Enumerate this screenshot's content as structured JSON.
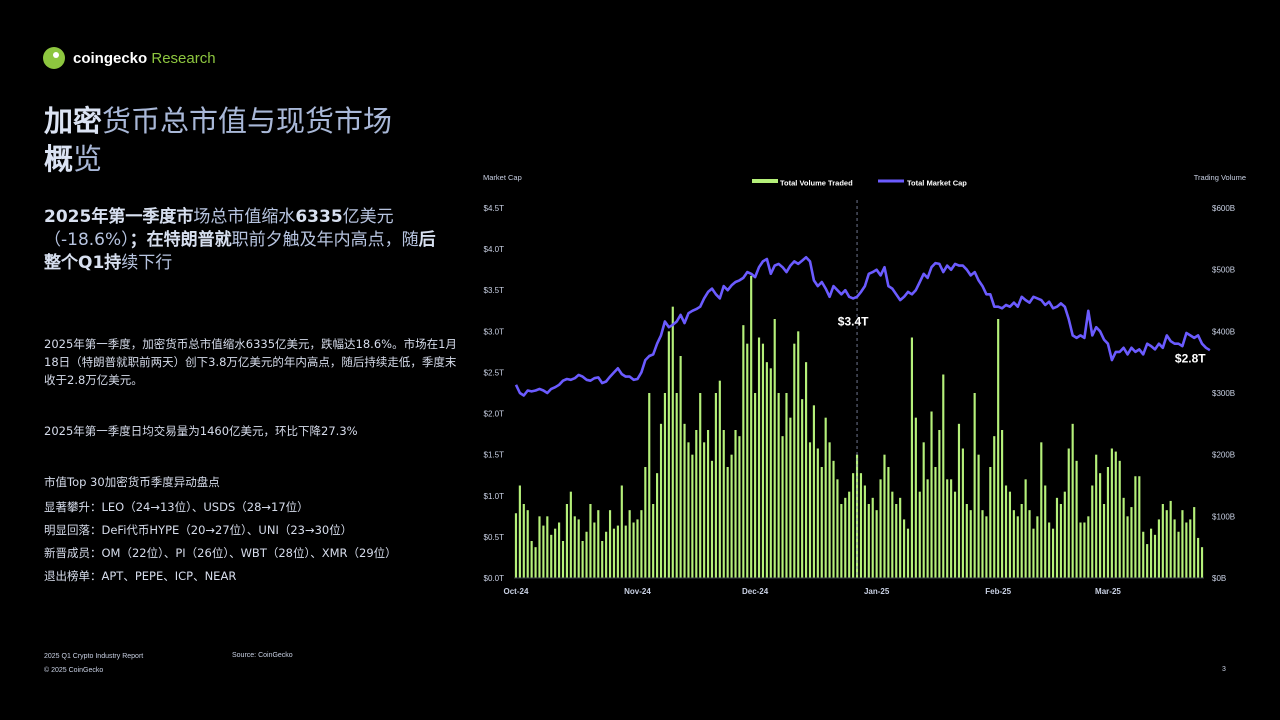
{
  "brand": {
    "name": "coingecko",
    "suffix": "Research"
  },
  "title": {
    "strong1": "加密",
    "rest1": "货币总市值与现货市场",
    "strong2": "概",
    "rest2": "览"
  },
  "headline": {
    "b1": "2025年第一季度市",
    "r1": "场总市值缩水",
    "b2": "6335",
    "r2": "亿美元（-18.6%）",
    "b3": "；在特朗普就",
    "r3": "职前夕触及年内高点，随",
    "b4": "后整个Q1持",
    "r4": "续下行"
  },
  "paragraph1": "2025年第一季度，加密货币总市值缩水6335亿美元，跌幅达18.6%。市场在1月18日（特朗普就职前两天）创下3.8万亿美元的年内高点，随后持续走低，季度末收于2.8万亿美元。",
  "paragraph2": "2025年第一季度日均交易量为1460亿美元，环比下降27.3%",
  "movers": {
    "title": "市值Top 30加密货币季度异动盘点",
    "items": [
      "显著攀升：LEO（24→13位）、USDS（28→17位）",
      "明显回落：DeFi代币HYPE（20→27位）、UNI（23→30位）",
      "新晋成员：OM（22位）、PI（26位）、WBT（28位）、XMR（29位）",
      "退出榜单：APT、PEPE、ICP、NEAR"
    ]
  },
  "footer": {
    "report": "2025 Q1 Crypto Industry Report",
    "copyright": "© 2025 CoinGecko",
    "source": "Source: CoinGecko",
    "page": "3"
  },
  "colors": {
    "volume": "#b5f07a",
    "market_cap": "#6b5bff",
    "accent": "#8dc63f"
  },
  "chart_data": {
    "type": "bar",
    "left_axis_label": "Market Cap",
    "right_axis_label": "Trading Volume",
    "left_ticks": [
      "$0.0T",
      "$0.5T",
      "$1.0T",
      "$1.5T",
      "$2.0T",
      "$2.5T",
      "$3.0T",
      "$3.5T",
      "$4.0T",
      "$4.5T"
    ],
    "right_ticks": [
      "$0B",
      "$100B",
      "$200B",
      "$300B",
      "$400B",
      "$500B",
      "$600B"
    ],
    "x_ticks": [
      "Oct-24",
      "Nov-24",
      "Dec-24",
      "Jan-25",
      "Feb-25",
      "Mar-25"
    ],
    "ylim_left": [
      0,
      4.5
    ],
    "ylim_right": [
      0,
      600
    ],
    "legend_position": "top",
    "annotations": [
      {
        "label": "$3.4T",
        "day": 86
      },
      {
        "label": "$2.8T",
        "day": 172
      }
    ],
    "divider_day": 87,
    "series": [
      {
        "name": "Total Volume Traded",
        "kind": "bar",
        "axis": "right",
        "values": [
          105,
          150,
          120,
          110,
          60,
          50,
          100,
          85,
          100,
          70,
          80,
          90,
          60,
          120,
          140,
          100,
          95,
          60,
          75,
          120,
          90,
          110,
          60,
          75,
          110,
          80,
          85,
          150,
          85,
          110,
          90,
          95,
          110,
          180,
          300,
          120,
          170,
          250,
          300,
          400,
          440,
          300,
          360,
          250,
          220,
          200,
          240,
          300,
          220,
          240,
          190,
          300,
          320,
          240,
          180,
          200,
          240,
          230,
          410,
          380,
          490,
          300,
          390,
          380,
          350,
          340,
          420,
          300,
          230,
          300,
          260,
          380,
          400,
          290,
          350,
          220,
          280,
          210,
          180,
          260,
          220,
          190,
          160,
          120,
          130,
          140,
          170,
          200,
          170,
          150,
          120,
          130,
          110,
          160,
          200,
          180,
          140,
          120,
          130,
          95,
          80,
          390,
          260,
          140,
          220,
          160,
          270,
          180,
          240,
          330,
          160,
          160,
          140,
          250,
          210,
          120,
          110,
          300,
          200,
          110,
          100,
          180,
          230,
          420,
          240,
          150,
          140,
          110,
          100,
          120,
          160,
          110,
          80,
          100,
          220,
          150,
          90,
          80,
          130,
          120,
          140,
          210,
          250,
          190,
          90,
          90,
          100,
          150,
          200,
          170,
          120,
          180,
          210,
          205,
          190,
          130,
          100,
          115,
          165,
          165,
          75,
          55,
          80,
          70,
          95,
          120,
          110,
          125,
          95,
          75,
          110,
          90,
          95,
          115,
          65,
          50
        ]
      },
      {
        "name": "Total Market Cap",
        "kind": "line",
        "axis": "left",
        "unit": "T",
        "values": [
          2.35,
          2.25,
          2.22,
          2.28,
          2.27,
          2.28,
          2.3,
          2.28,
          2.25,
          2.3,
          2.32,
          2.35,
          2.4,
          2.42,
          2.41,
          2.43,
          2.47,
          2.45,
          2.41,
          2.4,
          2.43,
          2.44,
          2.37,
          2.39,
          2.45,
          2.5,
          2.55,
          2.48,
          2.45,
          2.45,
          2.41,
          2.42,
          2.5,
          2.65,
          2.7,
          2.72,
          2.85,
          2.95,
          3.12,
          3.05,
          3.08,
          3.12,
          3.2,
          3.1,
          3.22,
          3.25,
          3.27,
          3.3,
          3.4,
          3.48,
          3.52,
          3.45,
          3.4,
          3.55,
          3.5,
          3.56,
          3.6,
          3.62,
          3.65,
          3.72,
          3.7,
          3.66,
          3.78,
          3.85,
          3.88,
          3.7,
          3.8,
          3.82,
          3.78,
          3.72,
          3.8,
          3.85,
          3.82,
          3.86,
          3.9,
          3.85,
          3.62,
          3.55,
          3.6,
          3.52,
          3.42,
          3.55,
          3.5,
          3.45,
          3.5,
          3.42,
          3.4,
          3.42,
          3.48,
          3.55,
          3.7,
          3.72,
          3.75,
          3.68,
          3.78,
          3.55,
          3.52,
          3.45,
          3.38,
          3.42,
          3.48,
          3.45,
          3.5,
          3.6,
          3.7,
          3.65,
          3.78,
          3.83,
          3.82,
          3.72,
          3.8,
          3.75,
          3.82,
          3.8,
          3.8,
          3.75,
          3.68,
          3.72,
          3.62,
          3.55,
          3.45,
          3.45,
          3.3,
          3.3,
          3.28,
          3.32,
          3.3,
          3.35,
          3.3,
          3.42,
          3.38,
          3.35,
          3.42,
          3.4,
          3.38,
          3.32,
          3.36,
          3.28,
          3.3,
          3.34,
          3.3,
          3.15,
          2.95,
          2.92,
          2.95,
          2.92,
          3.25,
          2.95,
          3.05,
          3.0,
          2.9,
          2.85,
          2.65,
          2.75,
          2.75,
          2.8,
          2.72,
          2.8,
          2.75,
          2.78,
          2.72,
          2.85,
          2.82,
          2.78,
          2.85,
          2.8,
          2.95,
          2.88,
          2.85,
          2.85,
          2.82,
          2.98,
          2.95,
          2.92,
          2.95,
          2.85,
          2.8,
          2.77
        ]
      }
    ]
  }
}
